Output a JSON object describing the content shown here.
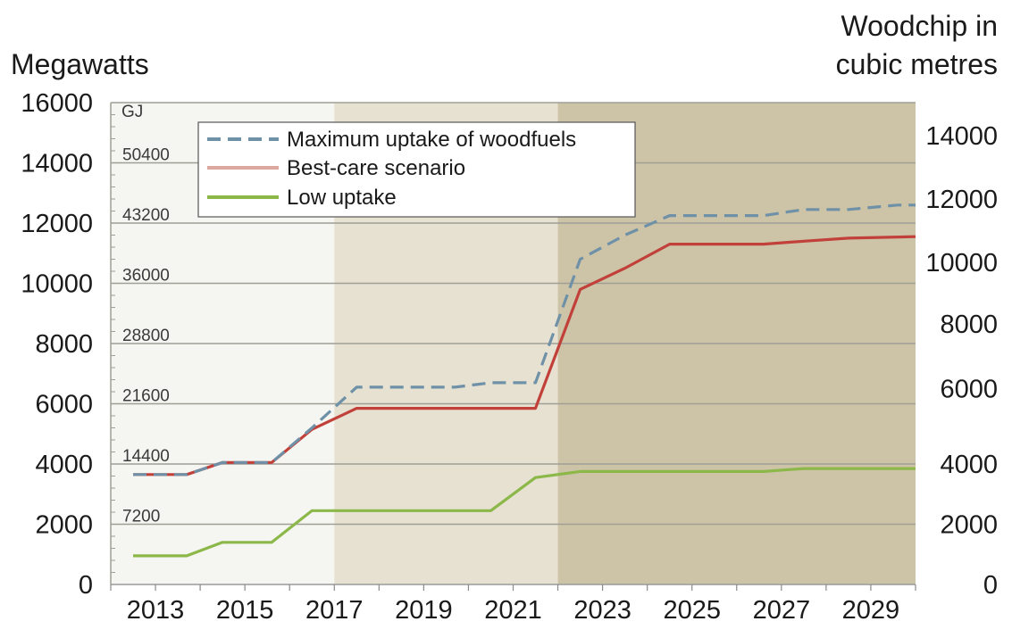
{
  "chart_data": {
    "type": "line",
    "ylabel_left": "Megawatts",
    "ylabel_right": [
      "Woodchip in",
      "cubic metres"
    ],
    "gj_unit": "GJ",
    "x_ticks": [
      2013,
      2015,
      2017,
      2019,
      2021,
      2023,
      2025,
      2027,
      2029
    ],
    "xlim": [
      2012,
      2030
    ],
    "ylim": [
      0,
      16000
    ],
    "y_ticks_left": [
      0,
      2000,
      4000,
      6000,
      8000,
      10000,
      12000,
      14000,
      16000
    ],
    "y_ticks_right": [
      {
        "label": "0",
        "at": 0
      },
      {
        "label": "2000",
        "at": 2000
      },
      {
        "label": "4000",
        "at": 4000
      },
      {
        "label": "6000",
        "at": 6500
      },
      {
        "label": "8000",
        "at": 8650
      },
      {
        "label": "10000",
        "at": 10700
      },
      {
        "label": "12000",
        "at": 12800
      },
      {
        "label": "14000",
        "at": 14900
      }
    ],
    "gj_ticks": [
      {
        "label": "7200",
        "at": 2000
      },
      {
        "label": "14400",
        "at": 4000
      },
      {
        "label": "21600",
        "at": 6000
      },
      {
        "label": "28800",
        "at": 8000
      },
      {
        "label": "36000",
        "at": 10000
      },
      {
        "label": "43200",
        "at": 12000
      },
      {
        "label": "50400",
        "at": 14000
      }
    ],
    "shaded_regions": [
      {
        "from": 2012,
        "to": 2017,
        "color": "#f5f5f1"
      },
      {
        "from": 2017,
        "to": 2022,
        "color": "#e6e1d1"
      },
      {
        "from": 2022,
        "to": 2030,
        "color": "#cdc3a7"
      }
    ],
    "grid": "horizontal",
    "legend_placement": "top-left",
    "series": [
      {
        "name": "Maximum uptake of woodfuels",
        "color": "#6f91a8",
        "style": "dashed",
        "points": [
          [
            2012.5,
            3650
          ],
          [
            2013.7,
            3650
          ],
          [
            2014.5,
            4050
          ],
          [
            2015.6,
            4050
          ],
          [
            2016.5,
            5200
          ],
          [
            2017.5,
            6550
          ],
          [
            2019.7,
            6550
          ],
          [
            2020.5,
            6700
          ],
          [
            2021.5,
            6700
          ],
          [
            2022.5,
            10800
          ],
          [
            2023.5,
            11600
          ],
          [
            2024.5,
            12250
          ],
          [
            2026.6,
            12250
          ],
          [
            2027.5,
            12450
          ],
          [
            2028.5,
            12450
          ],
          [
            2029.6,
            12600
          ],
          [
            2030,
            12600
          ]
        ]
      },
      {
        "name": "Best-care scenario",
        "color": "#c2403a",
        "style": "solid",
        "points": [
          [
            2012.5,
            3650
          ],
          [
            2013.7,
            3650
          ],
          [
            2014.5,
            4050
          ],
          [
            2015.6,
            4050
          ],
          [
            2016.5,
            5150
          ],
          [
            2017.5,
            5850
          ],
          [
            2021.5,
            5850
          ],
          [
            2022.5,
            9800
          ],
          [
            2023.5,
            10500
          ],
          [
            2024.5,
            11300
          ],
          [
            2026.6,
            11300
          ],
          [
            2027.5,
            11400
          ],
          [
            2028.5,
            11500
          ],
          [
            2030,
            11550
          ]
        ]
      },
      {
        "name": "Low uptake",
        "color": "#8cb84a",
        "style": "solid",
        "points": [
          [
            2012.5,
            950
          ],
          [
            2013.7,
            950
          ],
          [
            2014.5,
            1400
          ],
          [
            2015.6,
            1400
          ],
          [
            2016.5,
            2450
          ],
          [
            2020.5,
            2450
          ],
          [
            2021.5,
            3550
          ],
          [
            2022.5,
            3750
          ],
          [
            2026.6,
            3750
          ],
          [
            2027.5,
            3850
          ],
          [
            2030,
            3850
          ]
        ]
      }
    ]
  }
}
